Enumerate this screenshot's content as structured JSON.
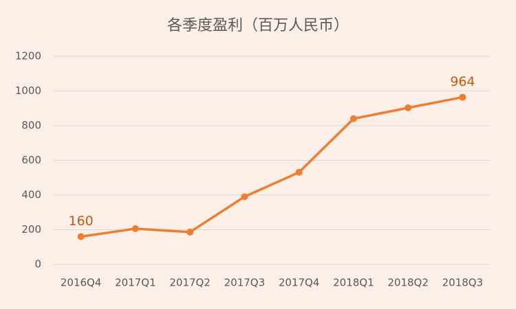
{
  "chart_data": {
    "type": "line",
    "title": "各季度盈利（百万人民币）",
    "categories": [
      "2016Q4",
      "2017Q1",
      "2017Q2",
      "2017Q3",
      "2017Q4",
      "2018Q1",
      "2018Q2",
      "2018Q3"
    ],
    "values": [
      160,
      206,
      186,
      390,
      531,
      840,
      903,
      964
    ],
    "value_labels": [
      "160",
      null,
      null,
      null,
      null,
      null,
      null,
      "964"
    ],
    "color": "#ed7d31",
    "label_color": "#c55a11",
    "ylim": [
      0,
      1200
    ],
    "yticks": [
      0,
      200,
      400,
      600,
      800,
      1000,
      1200
    ],
    "grid": true
  }
}
